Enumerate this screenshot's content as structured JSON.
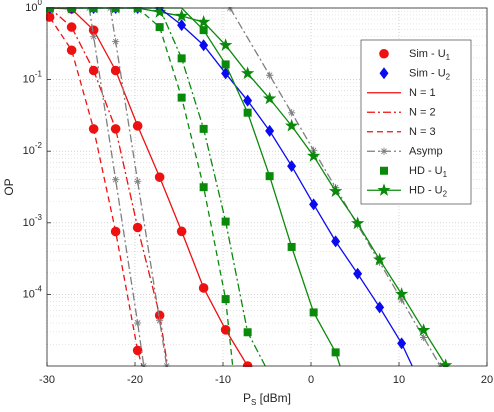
{
  "chart_data": {
    "type": "line",
    "xlabel": "P_S [dBm]",
    "ylabel": "OP",
    "xlim": [
      -30,
      20
    ],
    "xticks": [
      -30,
      -20,
      -10,
      0,
      10,
      20
    ],
    "ylim": [
      1e-05,
      1
    ],
    "yscale": "log",
    "yticks": [
      {
        "value": 1,
        "label": "10^{0}"
      },
      {
        "value": 0.1,
        "label": "10^{-1}"
      },
      {
        "value": 0.01,
        "label": "10^{-2}"
      },
      {
        "value": 0.001,
        "label": "10^{-3}"
      },
      {
        "value": 0.0001,
        "label": "10^{-4}"
      }
    ],
    "grid": true,
    "minor_grid": true,
    "legend": "upper right",
    "series": [
      {
        "name": "Sim - U_1",
        "color": "#ee1111",
        "dash": "none",
        "marker": "circle",
        "x": [
          -29.7,
          -27.2,
          -24.7,
          -22.2,
          -19.7,
          -17.2,
          -14.7,
          -12.2,
          -9.7,
          -7.2,
          -27.2,
          -24.7,
          -22.2,
          -19.7,
          -17.2,
          -29.7,
          -27.2,
          -24.7,
          -22.2,
          -19.7
        ],
        "values": [
          1,
          0.968,
          0.491,
          0.134,
          0.0226,
          0.00434,
          0.00076,
          0.000123,
          3.2e-05,
          1e-05,
          0.541,
          0.134,
          0.0205,
          0.00086,
          5.1e-05,
          0.747,
          0.257,
          0.0205,
          0.000755,
          1.65e-05
        ]
      },
      {
        "name": "Sim - U_2",
        "color": "#0b0bf0",
        "dash": "none",
        "marker": "diamond",
        "x": [
          -29.7,
          -27.2,
          -24.7,
          -22.2,
          -19.7,
          -17.2,
          -14.7,
          -12.2,
          -9.7,
          -7.2,
          -4.7,
          -2.2,
          0.3,
          2.8,
          5.3,
          7.8,
          10.3
        ],
        "values": [
          1,
          1,
          1,
          1,
          1,
          1,
          0.577,
          0.302,
          0.122,
          0.0508,
          0.0192,
          0.0062,
          0.00181,
          0.00055,
          0.000194,
          6.6e-05,
          2.07e-05
        ]
      },
      {
        "name": "N = 1",
        "color": "#ee1111",
        "dash": "solid",
        "marker": null,
        "x": [
          -30,
          -29.7,
          -27.2,
          -24.7,
          -22.2,
          -19.7,
          -17.2,
          -14.7,
          -12.2,
          -9.7,
          -7.2
        ],
        "values": [
          1,
          1,
          0.968,
          0.491,
          0.134,
          0.0226,
          0.00434,
          0.00076,
          0.000123,
          3.2e-05,
          1e-05
        ]
      },
      {
        "name": "N = 2",
        "color": "#ee1111",
        "dash": "dashdot",
        "marker": null,
        "x": [
          -30,
          -29.7,
          -27.2,
          -24.7,
          -22.2,
          -19.7,
          -17.2,
          -16.3
        ],
        "values": [
          1,
          1,
          0.541,
          0.134,
          0.0205,
          0.00086,
          5.1e-05,
          1e-05
        ]
      },
      {
        "name": "N = 3",
        "color": "#ee1111",
        "dash": "dashed",
        "marker": null,
        "x": [
          -30,
          -29.7,
          -27.2,
          -24.7,
          -22.2,
          -19.7,
          -19.2
        ],
        "values": [
          1,
          0.747,
          0.257,
          0.0205,
          0.000755,
          1.65e-05,
          1e-05
        ]
      },
      {
        "name": "Asymp",
        "color": "#7f7f7f",
        "dash": "dashdot",
        "marker": "asterisk",
        "x": [
          -25.2,
          -24.7,
          -22.2,
          -19.7,
          -19.0,
          null,
          -22.8,
          -22.2,
          -19.7,
          -17.2,
          -16.4,
          null,
          -9.2,
          -4.7,
          -2.2,
          0.3,
          2.8,
          5.3,
          7.8,
          10.3,
          12.8,
          14.7
        ],
        "values": [
          1,
          0.398,
          0.004,
          4e-05,
          1e-05,
          null,
          1,
          0.34,
          0.0038,
          4.3e-05,
          1e-05,
          null,
          1,
          0.115,
          0.0344,
          0.0103,
          0.0031,
          0.00093,
          0.00028,
          8.4e-05,
          2.5e-05,
          1e-05
        ]
      },
      {
        "name": "HD - U_1",
        "color": "#0a8a0a",
        "dash": "none",
        "marker": "square",
        "x": [
          -29.7,
          -27.2,
          -24.7,
          -22.2,
          -19.7,
          -17.2,
          -14.7,
          -12.2,
          -9.7,
          -14.7,
          -12.2,
          -9.7,
          -7.2,
          -12.2,
          -9.7,
          -7.2,
          -4.7,
          -2.2,
          0.3,
          2.8
        ],
        "values": [
          1,
          1,
          1,
          1,
          1,
          0.541,
          0.056,
          0.00314,
          8.6e-05,
          0.198,
          0.0205,
          0.00104,
          2.96e-05,
          0.491,
          0.163,
          0.0345,
          0.00448,
          0.00046,
          5.6e-05,
          1.55e-05
        ]
      },
      {
        "name": "HD - U_2",
        "color": "#0a8a0a",
        "dash": "solid",
        "marker": "star",
        "x": [
          -29.7,
          -27.2,
          -24.7,
          -22.2,
          -19.7,
          -17.2,
          -14.7,
          -12.2,
          -9.7,
          -7.2,
          -4.7,
          -2.2,
          0.3,
          2.8,
          5.3,
          7.8,
          10.3,
          12.8,
          15.3
        ],
        "values": [
          1,
          1,
          1,
          1,
          1,
          0.878,
          0.772,
          0.636,
          0.302,
          0.122,
          0.0542,
          0.0226,
          0.00855,
          0.00275,
          0.00098,
          0.000305,
          0.000101,
          3.16e-05,
          1.02e-05
        ]
      },
      {
        "color": "#0b0bf0",
        "dash": "solid",
        "marker": null,
        "x": [
          -30,
          -17.2,
          -14.7,
          -12.2,
          -9.7,
          -7.2,
          -4.7,
          -2.2,
          0.3,
          2.8,
          5.3,
          7.8,
          10.3,
          11.5
        ],
        "values": [
          1,
          1,
          0.577,
          0.302,
          0.122,
          0.0508,
          0.0192,
          0.0062,
          0.00181,
          0.00055,
          0.000194,
          6.6e-05,
          2.07e-05,
          1e-05
        ]
      },
      {
        "color": "#0a8a0a",
        "dash": "dashed",
        "marker": null,
        "x": [
          -30,
          -19.7,
          -17.2,
          -14.7,
          -12.2,
          -9.7,
          -8.9
        ],
        "values": [
          1,
          1,
          0.541,
          0.056,
          0.00314,
          8.6e-05,
          1e-05
        ]
      },
      {
        "color": "#0a8a0a",
        "dash": "dashdot",
        "marker": null,
        "x": [
          -30,
          -17.2,
          -14.7,
          -12.2,
          -9.7,
          -7.2,
          -5.2
        ],
        "values": [
          1,
          1,
          0.198,
          0.0205,
          0.00104,
          2.96e-05,
          1e-05
        ]
      },
      {
        "color": "#0a8a0a",
        "dash": "solid",
        "marker": null,
        "x": [
          -30,
          -14.7,
          -12.2,
          -9.7,
          -7.2,
          -4.7,
          -2.2,
          0.3,
          2.8,
          3.3
        ],
        "values": [
          1,
          1,
          0.491,
          0.163,
          0.0345,
          0.00448,
          0.00046,
          5.6e-05,
          1.55e-05,
          1e-05
        ]
      }
    ]
  }
}
